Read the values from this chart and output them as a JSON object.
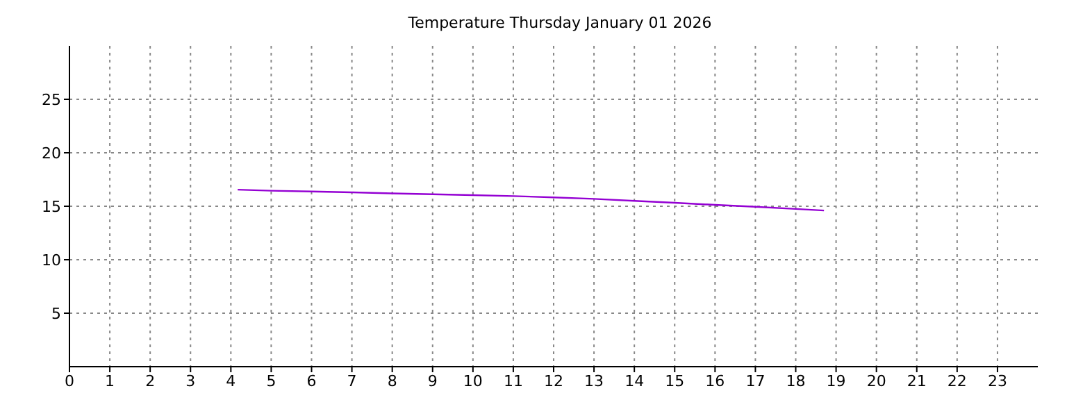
{
  "chart_data": {
    "type": "line",
    "title": "Temperature Thursday January 01 2026",
    "x": [
      4.17,
      5,
      6,
      7,
      8,
      9,
      10,
      11,
      12,
      13,
      14,
      15,
      16,
      17,
      18,
      18.7
    ],
    "series": [
      {
        "color": "#9400d3",
        "values": [
          16.55,
          16.45,
          16.38,
          16.3,
          16.2,
          16.12,
          16.04,
          15.95,
          15.83,
          15.69,
          15.5,
          15.32,
          15.13,
          14.95,
          14.75,
          14.6
        ]
      }
    ],
    "xlim": [
      0,
      24
    ],
    "xticks": [
      0,
      1,
      2,
      3,
      4,
      5,
      6,
      7,
      8,
      9,
      10,
      11,
      12,
      13,
      14,
      15,
      16,
      17,
      18,
      19,
      20,
      21,
      22,
      23
    ],
    "ylim": [
      0,
      30
    ],
    "yticks": [
      5,
      10,
      15,
      20,
      25
    ],
    "grid": true,
    "legend": false,
    "marker": "none",
    "line_style": "solid"
  }
}
